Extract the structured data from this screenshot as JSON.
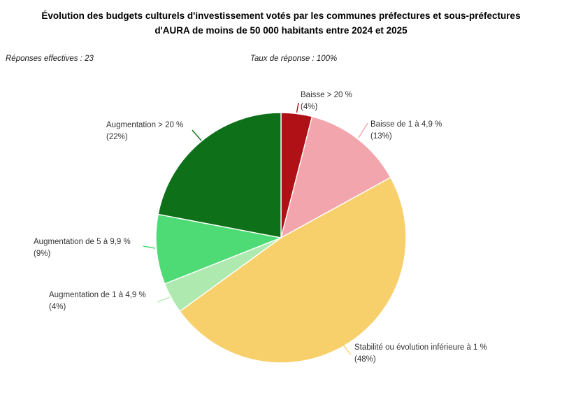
{
  "title": {
    "line1": "Évolution des budgets culturels d'investissement votés par les communes préfectures et sous-préfectures",
    "line2": "d'AURA de moins de 50 000 habitants entre 2024 et 2025"
  },
  "meta": {
    "responses": "Réponses effectives : 23",
    "response_rate": "Taux de réponse : 100%"
  },
  "chart_data": {
    "type": "pie",
    "title": "Évolution des budgets culturels d'investissement votés par les communes préfectures et sous-préfectures d'AURA de moins de 50 000 habitants entre 2024 et 2025",
    "responses_effective": 23,
    "response_rate_pct": 100,
    "start_angle": "12 o'clock",
    "direction": "clockwise",
    "legend_position": "outside-labels-with-leader-lines",
    "slices": [
      {
        "label": "Baisse > 20 %",
        "value": 4,
        "pct_label": "(4%)",
        "color": "#b01117"
      },
      {
        "label": "Baisse de 1 à 4,9 %",
        "value": 13,
        "pct_label": "(13%)",
        "color": "#f2a5ac"
      },
      {
        "label": "Stabilité ou évolution inférieure à 1 %",
        "value": 48,
        "pct_label": "(48%)",
        "color": "#f7d06b"
      },
      {
        "label": "Augmentation de 1 à 4,9 %",
        "value": 4,
        "pct_label": "(4%)",
        "color": "#aeeab0"
      },
      {
        "label": "Augmentation de 5 à 9,9 %",
        "value": 9,
        "pct_label": "(9%)",
        "color": "#4edb76"
      },
      {
        "label": "Augmentation > 20 %",
        "value": 22,
        "pct_label": "(22%)",
        "color": "#0e7119"
      }
    ]
  }
}
